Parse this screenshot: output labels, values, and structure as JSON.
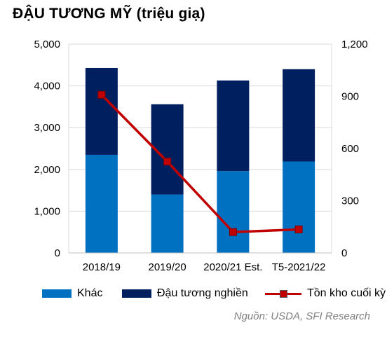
{
  "title": "ĐẬU TƯƠNG MỸ (triệu giạ)",
  "source": "Nguồn: USDA, SFI Research",
  "colors": {
    "khac": "#0070c0",
    "dau_tuong_nghien": "#001f5f",
    "ton_kho": "#c00000"
  },
  "chart_data": {
    "type": "bar",
    "stacked": true,
    "categories": [
      "2018/19",
      "2019/20",
      "2020/21 Est.",
      "T5-2021/22"
    ],
    "series": [
      {
        "name": "Khác",
        "type": "bar",
        "axis": "left",
        "values": [
          2350,
          1400,
          1960,
          2190
        ]
      },
      {
        "name": "Đậu tương nghiền",
        "type": "bar",
        "axis": "left",
        "values": [
          2080,
          2160,
          2170,
          2210
        ]
      },
      {
        "name": "Tồn kho cuối kỳ",
        "type": "line",
        "axis": "right",
        "values": [
          909,
          525,
          120,
          135
        ]
      }
    ],
    "ylim_left": [
      0,
      5000
    ],
    "yticks_left": [
      "0",
      "1,000",
      "2,000",
      "3,000",
      "4,000",
      "5,000"
    ],
    "ylim_right": [
      0,
      1200
    ],
    "yticks_right": [
      "0",
      "300",
      "600",
      "900",
      "1,200"
    ],
    "grid": true,
    "legend_position": "bottom"
  }
}
